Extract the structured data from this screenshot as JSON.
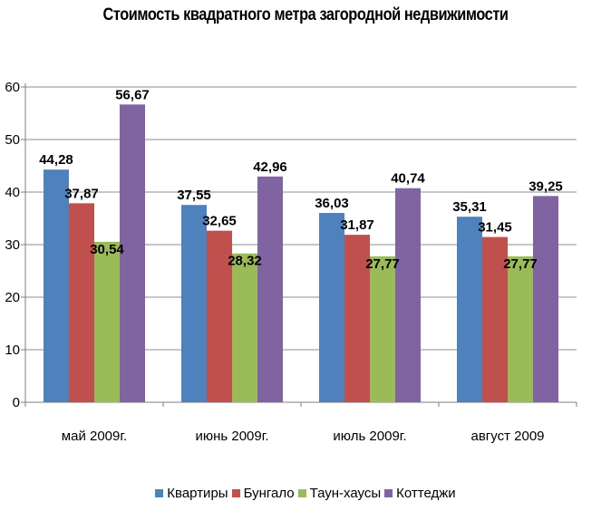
{
  "chart_data": {
    "type": "bar",
    "title": "Стоимость квадратного метра загородной недвижимости",
    "categories": [
      "май 2009г.",
      "июнь 2009г.",
      "июль 2009г.",
      "август 2009"
    ],
    "series": [
      {
        "name": "Квартиры",
        "color": "#4f81bd",
        "values": [
          44.28,
          37.55,
          36.03,
          35.31
        ],
        "labels": [
          "44,28",
          "37,55",
          "36,03",
          "35,31"
        ]
      },
      {
        "name": "Бунгало",
        "color": "#c0504d",
        "values": [
          37.87,
          32.65,
          31.87,
          31.45
        ],
        "labels": [
          "37,87",
          "32,65",
          "31,87",
          "31,45"
        ]
      },
      {
        "name": "Таун-хаусы",
        "color": "#9bbb59",
        "values": [
          30.54,
          28.32,
          27.77,
          27.77
        ],
        "labels": [
          "30,54",
          "28,32",
          "27,77",
          "27,77"
        ]
      },
      {
        "name": "Коттеджи",
        "color": "#8064a2",
        "values": [
          56.67,
          42.96,
          40.74,
          39.25
        ],
        "labels": [
          "56,67",
          "42,96",
          "40,74",
          "39,25"
        ]
      }
    ],
    "ylim": [
      0,
      60
    ],
    "yticks": [
      0,
      10,
      20,
      30,
      40,
      50,
      60
    ],
    "grid": true,
    "legend": "bottom"
  }
}
